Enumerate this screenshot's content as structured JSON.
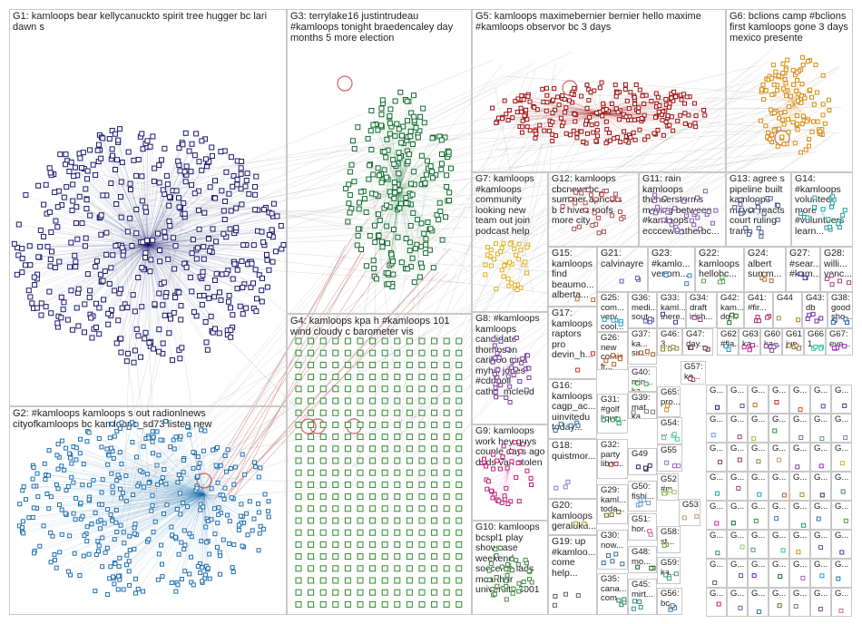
{
  "groups": [
    {
      "id": "G1",
      "label": "G1: kamloops bear kellycanuckto spirit tree hugger bc lari\ndawn s",
      "color": "#1a1a6e"
    },
    {
      "id": "G2",
      "label": "G2: #kamloops kamloops s out radionlnews\ncityofkamloops bc kamloops_sd73 listen new",
      "color": "#1f6fb0"
    },
    {
      "id": "G3",
      "label": "G3: terrylake16 justintrudeau\n#kamloops tonight braedencaley day\nmonths 5 more election",
      "color": "#0f6b2e"
    },
    {
      "id": "G4",
      "label": "G4: kamloops kpa h #kamloops 101\nwind cloudy c barometer vis",
      "color": "#2e8b2e"
    },
    {
      "id": "G5",
      "label": "G5: kamloops maximebernier bernier hello maxime\n#kamloops observor bc 3 days",
      "color": "#a01010"
    },
    {
      "id": "G6",
      "label": "G6: bclions camp #bclions\nfirst kamloops gone 3 days\nmexico presente",
      "color": "#d98a10"
    },
    {
      "id": "G7",
      "label": "G7: kamloops\n#kamloops\ncommunity\nlooking new\nteam out join\npodcast help",
      "color": "#e0b020"
    },
    {
      "id": "G8",
      "label": "G8: #kamloops\nkamloops\ncandidate\nthompson\ncariboo gina\nmyhill jones\n#cdnpoli\ncathy_mcleod",
      "color": "#7a3fa0"
    },
    {
      "id": "G9",
      "label": "G9: kamloops\nwork hey guys\ncouple days ago\ndads van stolen",
      "color": "#c0207a"
    },
    {
      "id": "G10",
      "label": "G10: kamloops\nbcspl1 play\nshowcase\nweekend\nsoccerns lads\nmcarthur\nuniversity 2001",
      "color": "#4a8a4a"
    },
    {
      "id": "G11",
      "label": "G11: rain\nkamloops\nthunderstorms\nmoving between\n#kamloops\neccceweatherbc...",
      "color": "#8a5ab0"
    },
    {
      "id": "G12",
      "label": "G12: kamloops\ncbcnewsbc\nsummer apricots\nb c hives roofs\nmore city",
      "color": "#b05050"
    },
    {
      "id": "G13",
      "label": "G13: agree s\npipeline built\nkamloops\nmayor reacts\ncourt ruling\ntrans",
      "color": "#506090"
    },
    {
      "id": "G14",
      "label": "G14:\n#kamloops\nvolunteer\nmore\n#volunteers\nlearn...",
      "color": "#20a0a0"
    },
    {
      "id": "G15",
      "label": "G15:\nkamloops\nfind\nbeaumo...\nalberta...",
      "color": "#d07020"
    },
    {
      "id": "G21",
      "label": "G21:\ncalvinayre",
      "color": "#6060c0"
    },
    {
      "id": "G23",
      "label": "G23:\n#kamlo...\nvenom...",
      "color": "#3080c0"
    },
    {
      "id": "G22",
      "label": "G22:\nkamloops\nhellobc...",
      "color": "#60a060"
    },
    {
      "id": "G24",
      "label": "G24:\nalbert\nsumm...",
      "color": "#a07040"
    },
    {
      "id": "G27",
      "label": "G27:\n#sear...\n#kam...",
      "color": "#4040a0"
    },
    {
      "id": "G28",
      "label": "G28:\nwilli...\nvanc...",
      "color": "#a04080"
    },
    {
      "id": "G17",
      "label": "G17:\nkamloops\nraptors\npro\ndevin_h...",
      "color": "#c03030"
    },
    {
      "id": "G16",
      "label": "G16:\nkamloops\ncagp_ac...\nuinvitedu\ntoday...",
      "color": "#3070a0"
    },
    {
      "id": "G31",
      "label": "G31:\n#golf\nliquo...",
      "color": "#20a060"
    },
    {
      "id": "G18",
      "label": "G18:\nquistmor...",
      "color": "#8080c0"
    },
    {
      "id": "G20",
      "label": "G20:\nkamloops\ngeraldku...\ncrop...",
      "color": "#a0a020"
    },
    {
      "id": "G19",
      "label": "G19: up\n#kamloo...\ncome\nhelp...",
      "color": "#606060"
    },
    {
      "id": "G25",
      "label": "G25:\ncom...\nvery\ncool...",
      "color": "#20a0c0"
    },
    {
      "id": "G26",
      "label": "G26:\nnew\ncomic\nfr...",
      "color": "#c06020"
    },
    {
      "id": "G29",
      "label": "G29:\nkaml...\ntoda...",
      "color": "#6a6a20"
    },
    {
      "id": "G30",
      "label": "G30:\nnow...",
      "color": "#3a6a9a"
    },
    {
      "id": "G32",
      "label": "G32:\nparty\nliber...",
      "color": "#9a3a3a"
    },
    {
      "id": "G35",
      "label": "G35:\ncana...\ncom...",
      "color": "#2a8a6a"
    },
    {
      "id": "G36",
      "label": "G36:\nmedi...\nsout...",
      "color": "#5a5aaa"
    },
    {
      "id": "G37",
      "label": "G37:\nka...\nsin...",
      "color": "#aa5a2a"
    },
    {
      "id": "G38",
      "label": "G38:\ngood\nsho...",
      "color": "#2a5aaa"
    },
    {
      "id": "G39",
      "label": "G39:\nmat\nka...",
      "color": "#7a7a7a"
    },
    {
      "id": "G40",
      "label": "G40:\nmin...\nka...",
      "color": "#4a9a4a"
    },
    {
      "id": "G41",
      "label": "G41:\n#fir...",
      "color": "#aa2a6a"
    },
    {
      "id": "G42",
      "label": "G42:\nkam...\ndq...",
      "color": "#2a6a2a"
    },
    {
      "id": "G43",
      "label": "G43:\ndb",
      "color": "#6a2aaa"
    },
    {
      "id": "G44",
      "label": "G44",
      "color": "#aa8a2a"
    },
    {
      "id": "G33",
      "label": "G33:\nkaml...\nthere...",
      "color": "#3a3a8a"
    },
    {
      "id": "G34",
      "label": "G34:\ndraft\nirish...",
      "color": "#8a3a8a"
    },
    {
      "id": "G45",
      "label": "G45:\nmirt...",
      "color": "#3a8a8a"
    },
    {
      "id": "G46",
      "label": "G46:\n3...",
      "color": "#8a8a3a"
    },
    {
      "id": "G47",
      "label": "G47:\nday...",
      "color": "#5a2a2a"
    },
    {
      "id": "G48",
      "label": "G48:\nmo...",
      "color": "#2a5a2a"
    },
    {
      "id": "G49",
      "label": "G49",
      "color": "#2a2a5a"
    },
    {
      "id": "G50",
      "label": "G50:\nfishi...",
      "color": "#6a9aca"
    },
    {
      "id": "G51",
      "label": "G51:\nhor...",
      "color": "#ca6a9a"
    },
    {
      "id": "G52",
      "label": "G52:\n#m...",
      "color": "#9aca6a"
    },
    {
      "id": "G53",
      "label": "G53",
      "color": "#ca9a6a"
    },
    {
      "id": "G54",
      "label": "G54:\n...",
      "color": "#6aca9a"
    },
    {
      "id": "G55",
      "label": "G55",
      "color": "#9a6aca"
    },
    {
      "id": "G56",
      "label": "G56:\nbc...",
      "color": "#4a7a9a"
    },
    {
      "id": "G57",
      "label": "G57:\nka...",
      "color": "#9a4a7a"
    },
    {
      "id": "G58",
      "label": "G58:\nst...",
      "color": "#7a9a4a"
    },
    {
      "id": "G59",
      "label": "G59:\nka...",
      "color": "#4a9a7a"
    },
    {
      "id": "G60",
      "label": "G60:\nka...",
      "color": "#7a4a9a"
    },
    {
      "id": "G61",
      "label": "G61:\njun...",
      "color": "#9a7a4a"
    },
    {
      "id": "G62",
      "label": "G62:\n#fla...",
      "color": "#2a9aca"
    },
    {
      "id": "G63",
      "label": "G63:\nka...",
      "color": "#ca2a9a"
    },
    {
      "id": "G64",
      "label": "G64:\n...",
      "color": "#9aca2a"
    },
    {
      "id": "G65",
      "label": "G65:\npro...",
      "color": "#ca9a2a"
    },
    {
      "id": "G66",
      "label": "G66:\n1...",
      "color": "#2aca9a"
    },
    {
      "id": "G67",
      "label": "G67:\neve...",
      "color": "#9a2aca"
    }
  ],
  "small_cells": [
    "G...",
    "G...",
    "G...",
    "G...",
    "G...",
    "G...",
    "G...",
    "G...",
    "G...",
    "G...",
    "G...",
    "G...",
    "G...",
    "G...",
    "G...",
    "G...",
    "G...",
    "G...",
    "G...",
    "G...",
    "G...",
    "G...",
    "G...",
    "G...",
    "G...",
    "G...",
    "G...",
    "G...",
    "G...",
    "G...",
    "G...",
    "G...",
    "G...",
    "G...",
    "G...",
    "G...",
    "G...",
    "G...",
    "G...",
    "G...",
    "G...",
    "G...",
    "G...",
    "G...",
    "G...",
    "G...",
    "G...",
    "G...",
    "G...",
    "G...",
    "G...",
    "G...",
    "G...",
    "G...",
    "G...",
    "G..."
  ],
  "misc_labels": {
    "g63_extra": "G...",
    "g64_jr": "jr...",
    "g64_je": "je...",
    "g56_k": "k...",
    "g57_k": "ka...",
    "n20": "20",
    "n24": "24",
    "be": "be...",
    "ja": "ja...",
    "et": "et...",
    "fk": "#k...",
    "ki": "ki...",
    "ho": "ho...",
    "th": "th...",
    "ex": "ex...",
    "hi": "hi...",
    "r1": "r1",
    "ni": "ni..."
  }
}
